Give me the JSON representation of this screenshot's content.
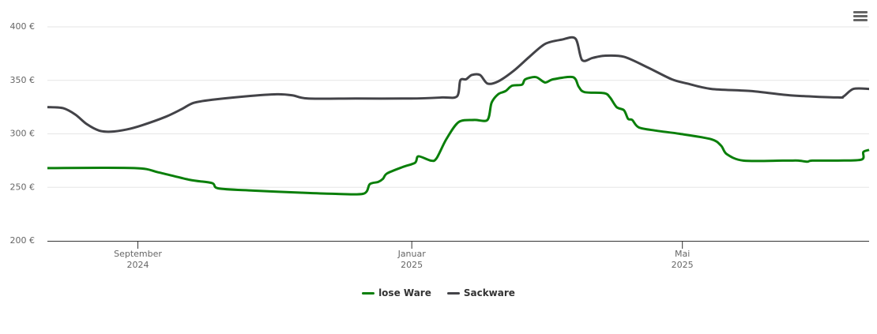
{
  "chart_data": {
    "type": "line",
    "ylim": [
      200,
      400
    ],
    "yticks": [
      {
        "value": 200,
        "label": "200 €"
      },
      {
        "value": 250,
        "label": "250 €"
      },
      {
        "value": 300,
        "label": "300 €"
      },
      {
        "value": 350,
        "label": "350 €"
      },
      {
        "value": 400,
        "label": "400 €"
      }
    ],
    "xlim": [
      2024.557,
      2025.556
    ],
    "xticks": [
      {
        "value": 2024.667,
        "label": "September 2024"
      },
      {
        "value": 2025.0,
        "label": "Januar 2025"
      },
      {
        "value": 2025.329,
        "label": "Mai 2025"
      }
    ],
    "grid": true,
    "legend": "bottom",
    "series": [
      {
        "name": "lose Ware",
        "color": "#0a7f0a",
        "x": [
          2024.557,
          2024.663,
          2024.692,
          2024.73,
          2024.757,
          2024.765,
          2024.807,
          2024.865,
          2024.903,
          2024.941,
          2024.949,
          2024.959,
          2024.965,
          2024.97,
          2024.989,
          2025.004,
          2025.008,
          2025.023,
          2025.03,
          2025.042,
          2025.057,
          2025.076,
          2025.092,
          2025.097,
          2025.105,
          2025.114,
          2025.122,
          2025.134,
          2025.138,
          2025.151,
          2025.162,
          2025.172,
          2025.196,
          2025.203,
          2025.21,
          2025.234,
          2025.241,
          2025.249,
          2025.258,
          2025.263,
          2025.268,
          2025.276,
          2025.297,
          2025.326,
          2025.364,
          2025.376,
          2025.383,
          2025.403,
          2025.451,
          2025.46,
          2025.47,
          2025.481,
          2025.487,
          2025.518,
          2025.547,
          2025.549,
          2025.556
        ],
        "values": [
          268,
          268,
          264,
          257,
          254,
          249,
          247,
          245,
          244,
          244,
          253,
          255,
          258,
          263,
          269,
          273,
          279,
          275,
          277,
          295,
          311,
          313,
          313,
          329,
          337,
          340,
          345,
          346,
          351,
          353,
          348,
          351,
          353,
          344,
          339,
          338,
          334,
          325,
          322,
          314,
          313,
          306,
          303,
          300,
          295,
          289,
          281,
          275,
          275,
          275,
          275,
          274,
          275,
          275,
          276,
          283,
          285
        ]
      },
      {
        "name": "Sackware",
        "color": "#434348",
        "x": [
          2024.557,
          2024.576,
          2024.591,
          2024.605,
          2024.62,
          2024.634,
          2024.653,
          2024.672,
          2024.701,
          2024.72,
          2024.735,
          2024.759,
          2024.797,
          2024.836,
          2024.855,
          2024.874,
          2024.932,
          2024.999,
          2025.037,
          2025.055,
          2025.059,
          2025.066,
          2025.073,
          2025.083,
          2025.092,
          2025.105,
          2025.124,
          2025.143,
          2025.162,
          2025.182,
          2025.199,
          2025.207,
          2025.22,
          2025.234,
          2025.258,
          2025.287,
          2025.316,
          2025.335,
          2025.364,
          2025.412,
          2025.46,
          2025.518,
          2025.525,
          2025.537,
          2025.556
        ],
        "values": [
          325,
          324,
          318,
          309,
          303,
          302,
          304,
          308,
          316,
          323,
          329,
          332,
          335,
          337,
          336,
          333,
          333,
          333,
          334,
          335,
          350,
          351,
          355,
          355,
          347,
          349,
          359,
          372,
          384,
          388,
          389,
          369,
          371,
          373,
          372,
          362,
          351,
          347,
          342,
          340,
          336,
          334,
          335,
          342,
          342
        ]
      }
    ]
  }
}
